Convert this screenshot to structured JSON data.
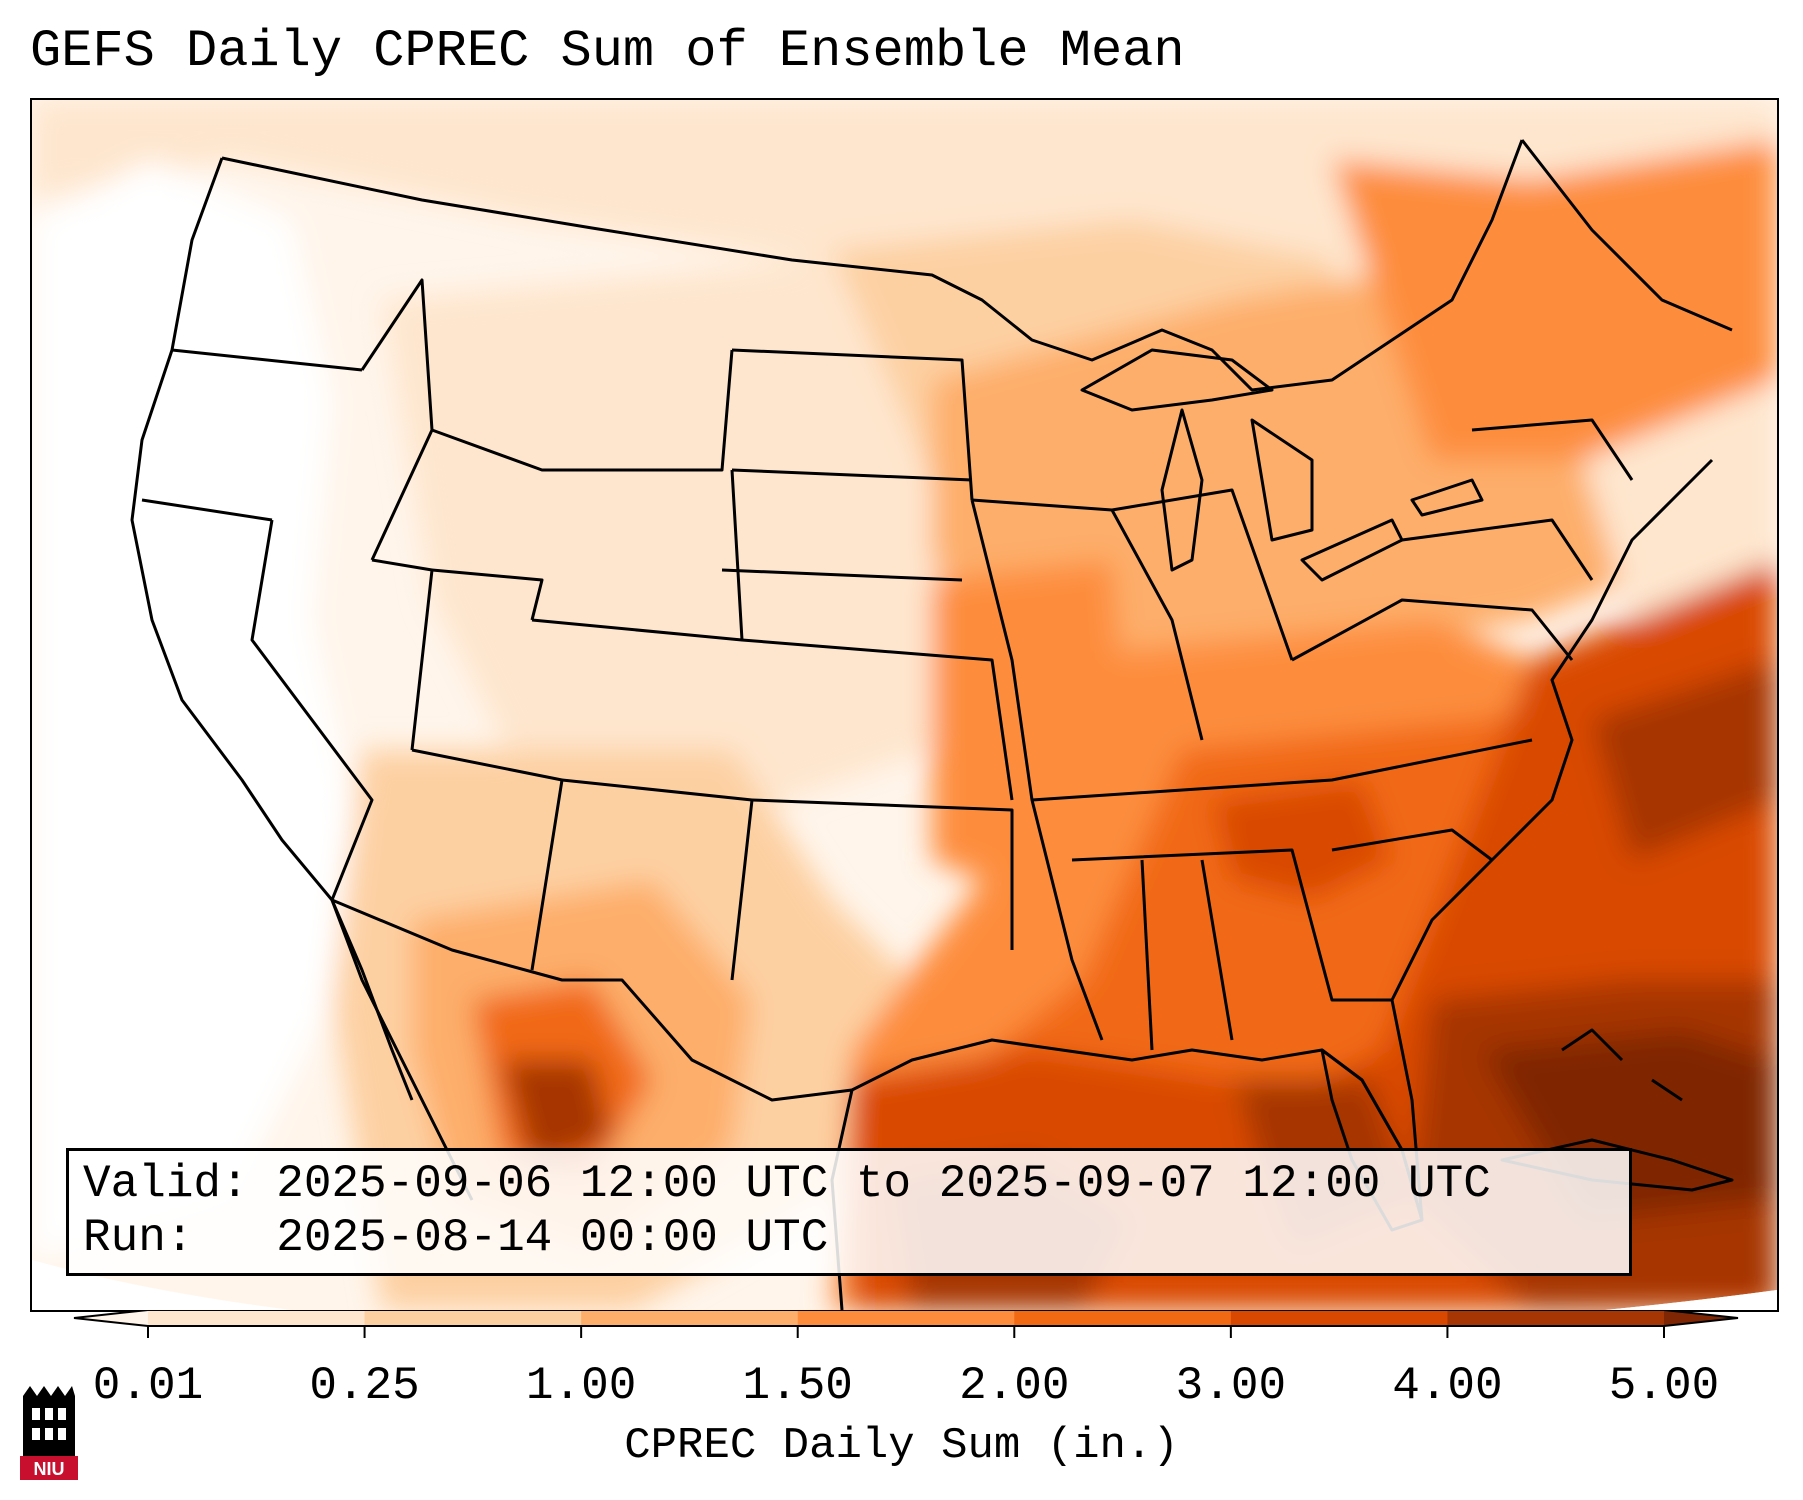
{
  "title": "GEFS Daily CPREC Sum of Ensemble Mean",
  "info": {
    "valid_line": "Valid: 2025-09-06 12:00 UTC to 2025-09-07 12:00 UTC",
    "run_line": "Run:   2025-08-14 00:00 UTC"
  },
  "colorbar": {
    "label": "CPREC Daily Sum (in.)",
    "ticks": [
      "0.01",
      "0.25",
      "1.00",
      "1.50",
      "2.00",
      "3.00",
      "4.00",
      "5.00"
    ],
    "colors": [
      "#fff5eb",
      "#fee6ce",
      "#fdd0a2",
      "#fdae6b",
      "#fd8d3c",
      "#f16913",
      "#d94801",
      "#a63603",
      "#7f2704"
    ],
    "extend": "both"
  },
  "logo": {
    "text": "NIU",
    "colors": {
      "red": "#c8102e",
      "black": "#000000"
    }
  },
  "map": {
    "region": "Contiguous United States",
    "projection": "Lambert Conformal",
    "borders": [
      "coastlines",
      "country borders",
      "state borders"
    ],
    "color_level_regions": {
      "north-central plains": "light",
      "west coast and great basin": "lightest",
      "southwest and mexico": "medium",
      "southeast us": "dark",
      "gulf of mexico": "dark",
      "atlantic off florida": "darkest"
    }
  }
}
